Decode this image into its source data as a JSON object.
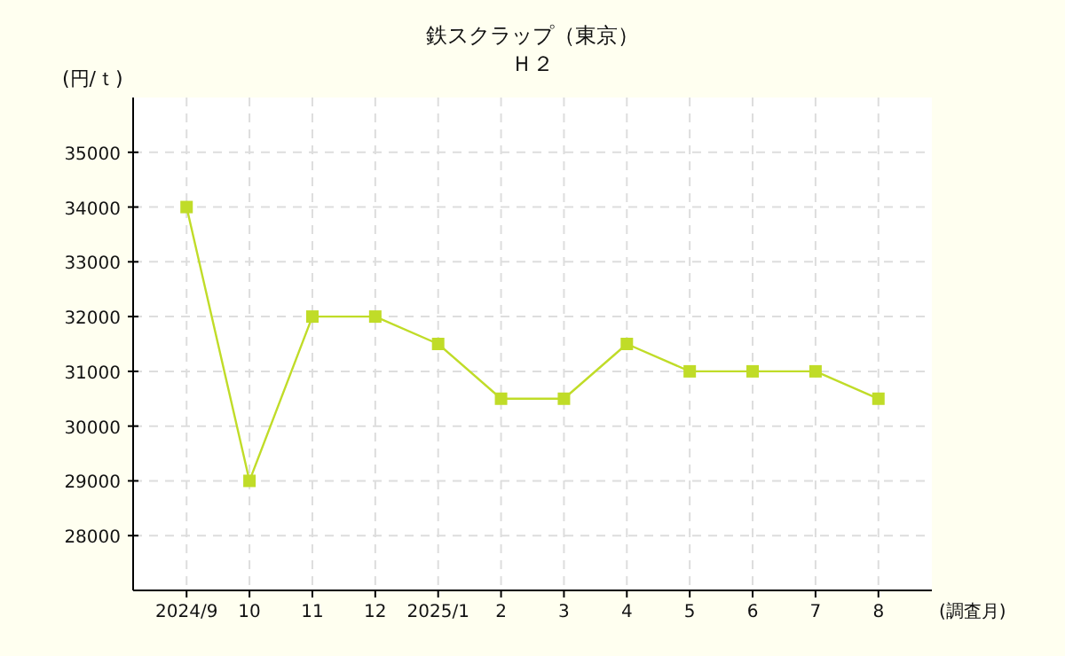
{
  "chart_data": {
    "type": "line",
    "title": "鉄スクラップ（東京）",
    "subtitle": "Ｈ２",
    "ylabel": "(円/ｔ)",
    "xlabel": "(調査月)",
    "categories": [
      "2024/9",
      "10",
      "11",
      "12",
      "2025/1",
      "2",
      "3",
      "4",
      "5",
      "6",
      "7",
      "8"
    ],
    "series": [
      {
        "color": "#c0dc28",
        "values": [
          34000,
          29000,
          32000,
          32000,
          31500,
          30500,
          30500,
          31500,
          31000,
          31000,
          31000,
          30500
        ]
      }
    ],
    "ylim": [
      27000,
      36000
    ],
    "yticks": [
      28000,
      29000,
      30000,
      31000,
      32000,
      33000,
      34000,
      35000
    ],
    "grid": true,
    "marker": "square",
    "line_style": "solid"
  }
}
